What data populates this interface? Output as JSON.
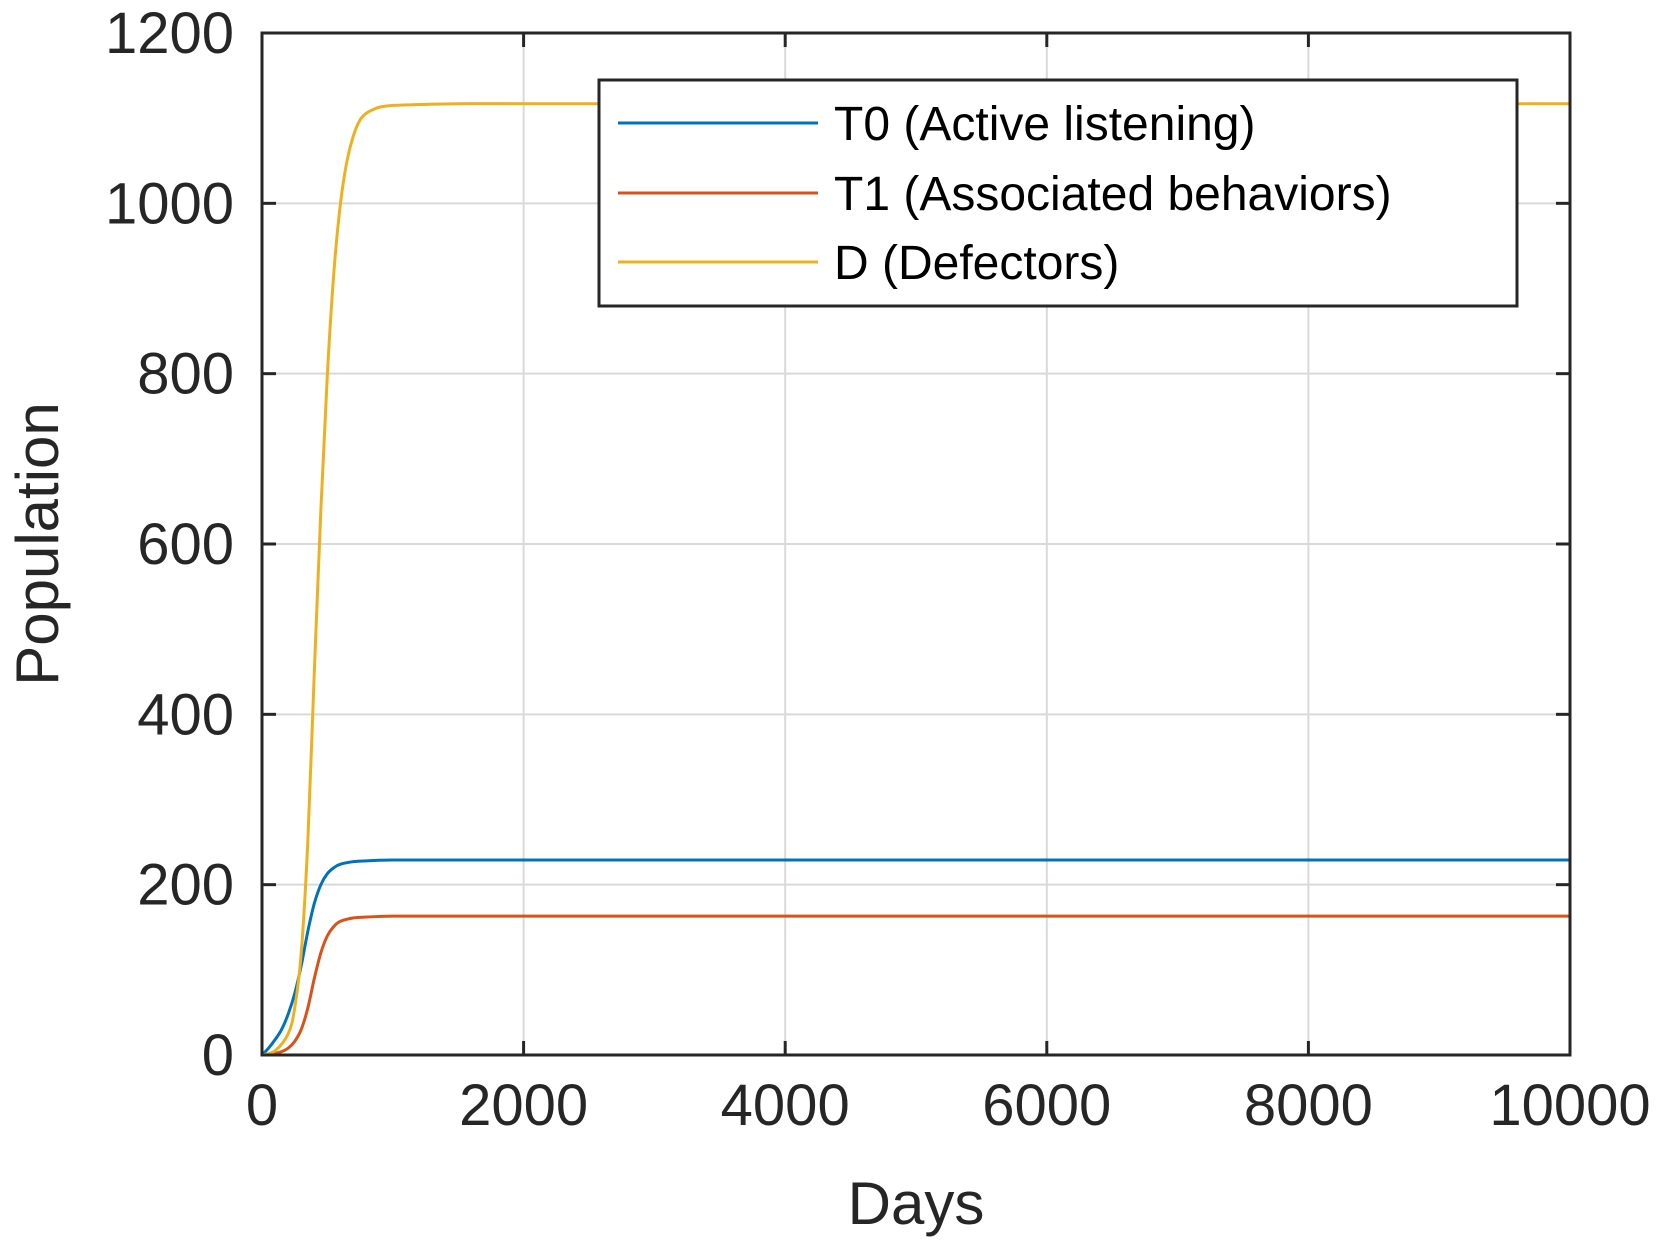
{
  "chart_data": {
    "type": "line",
    "title": "",
    "xlabel": "Days",
    "ylabel": "Population",
    "xlim": [
      0,
      10000
    ],
    "ylim": [
      0,
      1200
    ],
    "xticks": [
      0,
      2000,
      4000,
      6000,
      8000,
      10000
    ],
    "yticks": [
      0,
      200,
      400,
      600,
      800,
      1000,
      1200
    ],
    "xtick_labels": [
      "0",
      "2000",
      "4000",
      "6000",
      "8000",
      "10000"
    ],
    "ytick_labels": [
      "0",
      "200",
      "400",
      "600",
      "800",
      "1000",
      "1200"
    ],
    "grid": true,
    "legend_position": "top-right",
    "series": [
      {
        "name": "T0 (Active listening)",
        "color": "#0072BD",
        "x": [
          0,
          50,
          100,
          150,
          200,
          250,
          300,
          350,
          400,
          450,
          500,
          550,
          600,
          700,
          800,
          1000,
          1500,
          2000,
          4000,
          6000,
          8000,
          10000
        ],
        "y": [
          0,
          8,
          18,
          30,
          48,
          72,
          105,
          145,
          178,
          200,
          213,
          220,
          224,
          227,
          228,
          229,
          229,
          229,
          229,
          229,
          229,
          229
        ]
      },
      {
        "name": "T1 (Associated behaviors)",
        "color": "#D95319",
        "x": [
          0,
          100,
          150,
          200,
          250,
          300,
          350,
          400,
          450,
          500,
          550,
          600,
          700,
          800,
          1000,
          1500,
          2000,
          4000,
          6000,
          8000,
          10000
        ],
        "y": [
          0,
          2,
          4,
          8,
          16,
          30,
          55,
          90,
          120,
          140,
          151,
          157,
          161,
          162,
          163,
          163,
          163,
          163,
          163,
          163,
          163
        ]
      },
      {
        "name": "D (Defectors)",
        "color": "#EDB120",
        "x": [
          0,
          100,
          200,
          250,
          300,
          350,
          400,
          450,
          500,
          550,
          600,
          650,
          700,
          750,
          800,
          850,
          900,
          1000,
          1200,
          1500,
          2000,
          4000,
          6000,
          8000,
          10000
        ],
        "y": [
          0,
          5,
          25,
          55,
          120,
          250,
          450,
          640,
          800,
          920,
          1000,
          1050,
          1080,
          1098,
          1106,
          1110,
          1113,
          1115,
          1116,
          1117,
          1117,
          1117,
          1117,
          1117,
          1117
        ]
      }
    ]
  }
}
